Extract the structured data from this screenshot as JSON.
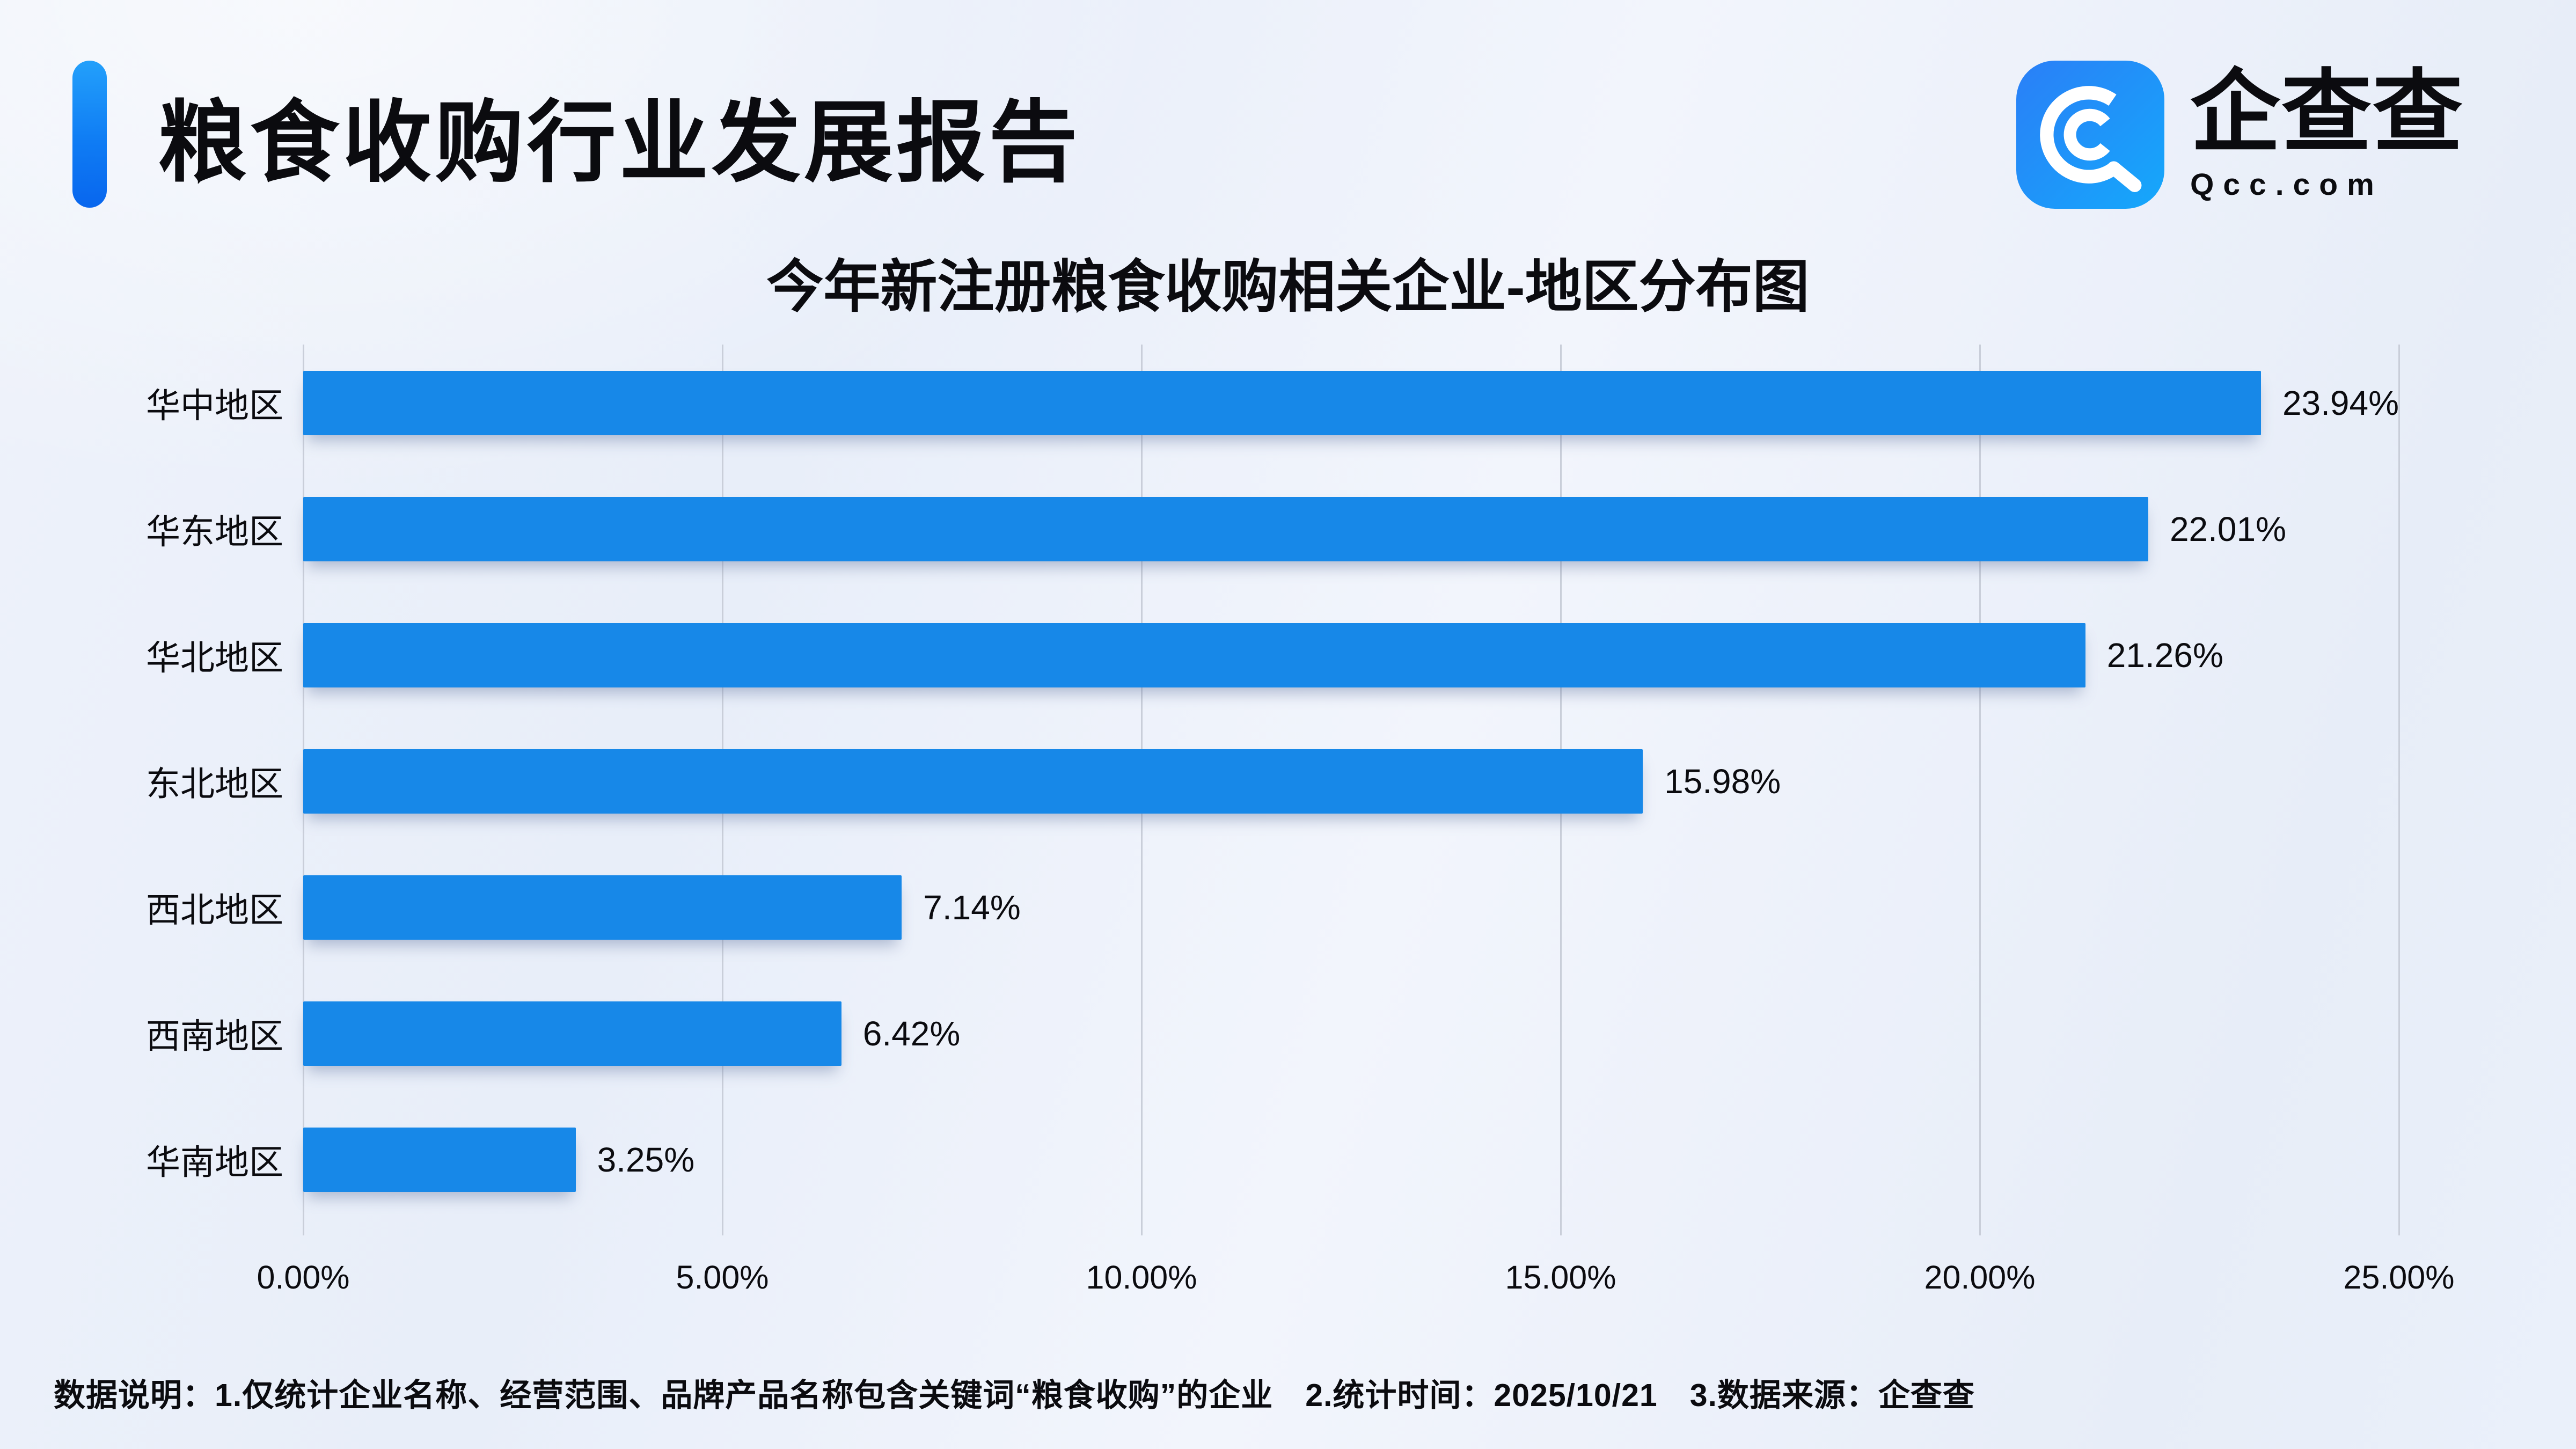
{
  "page": {
    "report_title": "粮食收购行业发展报告",
    "brand": {
      "name_cn": "企查查",
      "domain": "Qcc.com",
      "logo_icon": "qcc-spiral-magnifier-icon"
    },
    "footer": "数据说明：1.仅统计企业名称、经营范围、品牌产品名称包含关键词“粮食收购”的企业　2.统计时间：2025/10/21　3.数据来源：企查查"
  },
  "colors": {
    "bar_blue": "#1788e8",
    "accent_top": "#23a0fb",
    "accent_bottom": "#0866ee",
    "background": "#edf1fa",
    "gridline": "#c9ced9"
  },
  "chart_data": {
    "type": "bar",
    "orientation": "horizontal",
    "title": "今年新注册粮食收购相关企业-地区分布图",
    "categories": [
      "华中地区",
      "华东地区",
      "华北地区",
      "东北地区",
      "西北地区",
      "西南地区",
      "华南地区"
    ],
    "values": [
      23.94,
      22.01,
      21.26,
      15.98,
      7.14,
      6.42,
      3.25
    ],
    "value_labels": [
      "23.94%",
      "22.01%",
      "21.26%",
      "15.98%",
      "7.14%",
      "6.42%",
      "3.25%"
    ],
    "x_ticks": [
      "0.00%",
      "5.00%",
      "10.00%",
      "15.00%",
      "20.00%",
      "25.00%"
    ],
    "xlim": [
      0,
      25
    ],
    "xlabel": "",
    "ylabel": "",
    "grid": true,
    "legend": false,
    "bar_color": "#1788e8"
  }
}
